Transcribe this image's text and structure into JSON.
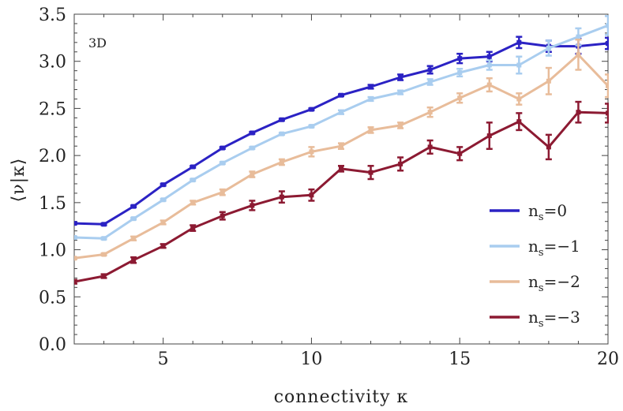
{
  "chart_data": {
    "type": "line",
    "annotation": "3D",
    "xlabel": "connectivity κ",
    "ylabel": "⟨ν|κ⟩",
    "xlim": [
      2,
      20
    ],
    "ylim": [
      0,
      3.5
    ],
    "x_ticks": [
      5,
      10,
      15,
      20
    ],
    "x_tick_labels": [
      "5",
      "10",
      "15",
      "20"
    ],
    "y_ticks": [
      0,
      0.5,
      1.0,
      1.5,
      2.0,
      2.5,
      3.0,
      3.5
    ],
    "y_tick_labels": [
      "0.0",
      "0.5",
      "1.0",
      "1.5",
      "2.0",
      "2.5",
      "3.0",
      "3.5"
    ],
    "grid": false,
    "legend_position": "right",
    "x": [
      2,
      3,
      4,
      5,
      6,
      7,
      8,
      9,
      10,
      11,
      12,
      13,
      14,
      15,
      16,
      17,
      18,
      19,
      20
    ],
    "series": [
      {
        "name": "n_s=0",
        "legend_base": "n",
        "legend_sub": "s",
        "legend_suffix": "=0",
        "color": "#2b22c4",
        "values": [
          1.28,
          1.27,
          1.46,
          1.69,
          1.88,
          2.08,
          2.24,
          2.38,
          2.49,
          2.64,
          2.73,
          2.83,
          2.91,
          3.03,
          3.05,
          3.2,
          3.16,
          3.16,
          3.19
        ],
        "errors": [
          0.01,
          0.01,
          0.01,
          0.01,
          0.01,
          0.01,
          0.01,
          0.01,
          0.01,
          0.01,
          0.02,
          0.03,
          0.04,
          0.05,
          0.05,
          0.06,
          0.06,
          0.08,
          0.06
        ]
      },
      {
        "name": "n_s=−1",
        "legend_base": "n",
        "legend_sub": "s",
        "legend_suffix": "=−1",
        "color": "#a9cdef",
        "values": [
          1.13,
          1.12,
          1.33,
          1.53,
          1.74,
          1.92,
          2.08,
          2.23,
          2.31,
          2.46,
          2.6,
          2.67,
          2.78,
          2.88,
          2.96,
          2.96,
          3.14,
          3.26,
          3.38
        ],
        "errors": [
          0.01,
          0.01,
          0.01,
          0.01,
          0.01,
          0.01,
          0.01,
          0.01,
          0.01,
          0.02,
          0.02,
          0.02,
          0.03,
          0.04,
          0.05,
          0.09,
          0.08,
          0.09,
          0.1
        ]
      },
      {
        "name": "n_s=−2",
        "legend_base": "n",
        "legend_sub": "s",
        "legend_suffix": "=−2",
        "color": "#e8bc9a",
        "values": [
          0.91,
          0.95,
          1.12,
          1.29,
          1.5,
          1.61,
          1.8,
          1.93,
          2.04,
          2.1,
          2.27,
          2.32,
          2.46,
          2.61,
          2.75,
          2.6,
          2.79,
          3.07,
          2.74
        ],
        "errors": [
          0.01,
          0.01,
          0.02,
          0.02,
          0.02,
          0.03,
          0.03,
          0.03,
          0.05,
          0.03,
          0.03,
          0.03,
          0.05,
          0.05,
          0.07,
          0.06,
          0.14,
          0.16,
          0.12
        ]
      },
      {
        "name": "n_s=−3",
        "legend_base": "n",
        "legend_sub": "s",
        "legend_suffix": "=−3",
        "color": "#8c1a32",
        "values": [
          0.66,
          0.72,
          0.89,
          1.04,
          1.23,
          1.36,
          1.47,
          1.56,
          1.58,
          1.86,
          1.82,
          1.91,
          2.09,
          2.02,
          2.21,
          2.36,
          2.09,
          2.46,
          2.45
        ],
        "errors": [
          0.02,
          0.02,
          0.03,
          0.02,
          0.03,
          0.04,
          0.05,
          0.06,
          0.06,
          0.03,
          0.07,
          0.07,
          0.07,
          0.07,
          0.14,
          0.09,
          0.13,
          0.11,
          0.1
        ]
      }
    ]
  }
}
